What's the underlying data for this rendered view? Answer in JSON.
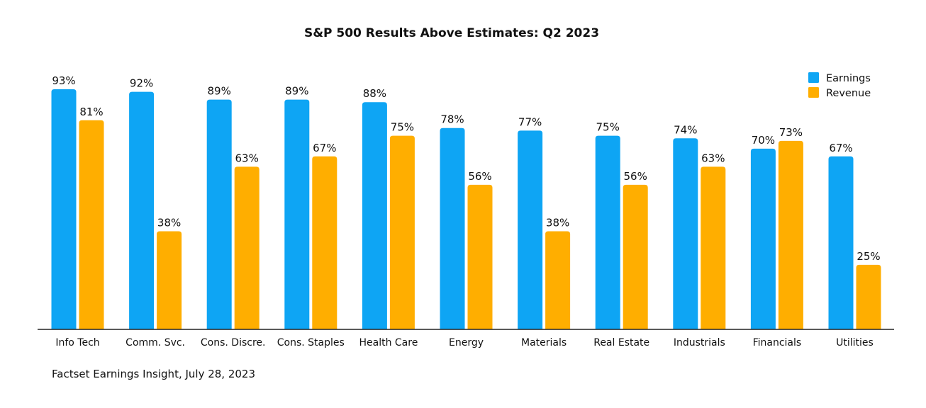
{
  "chart_data": {
    "type": "bar",
    "title": "S&P 500 Results Above Estimates: Q2 2023",
    "categories": [
      "Info Tech",
      "Comm. Svc.",
      "Cons. Discre.",
      "Cons. Staples",
      "Health Care",
      "Energy",
      "Materials",
      "Real Estate",
      "Industrials",
      "Financials",
      "Utilities"
    ],
    "series": [
      {
        "name": "Earnings",
        "color": "#0EA5F4",
        "values": [
          93,
          92,
          89,
          89,
          88,
          78,
          77,
          75,
          74,
          70,
          67
        ]
      },
      {
        "name": "Revenue",
        "color": "#FFAE00",
        "values": [
          81,
          38,
          63,
          67,
          75,
          56,
          38,
          56,
          63,
          73,
          25
        ]
      }
    ],
    "value_suffix": "%",
    "ylim": [
      0,
      100
    ],
    "legend": "top-right",
    "grid": false,
    "source": "Factset Earnings Insight, July 28, 2023"
  }
}
